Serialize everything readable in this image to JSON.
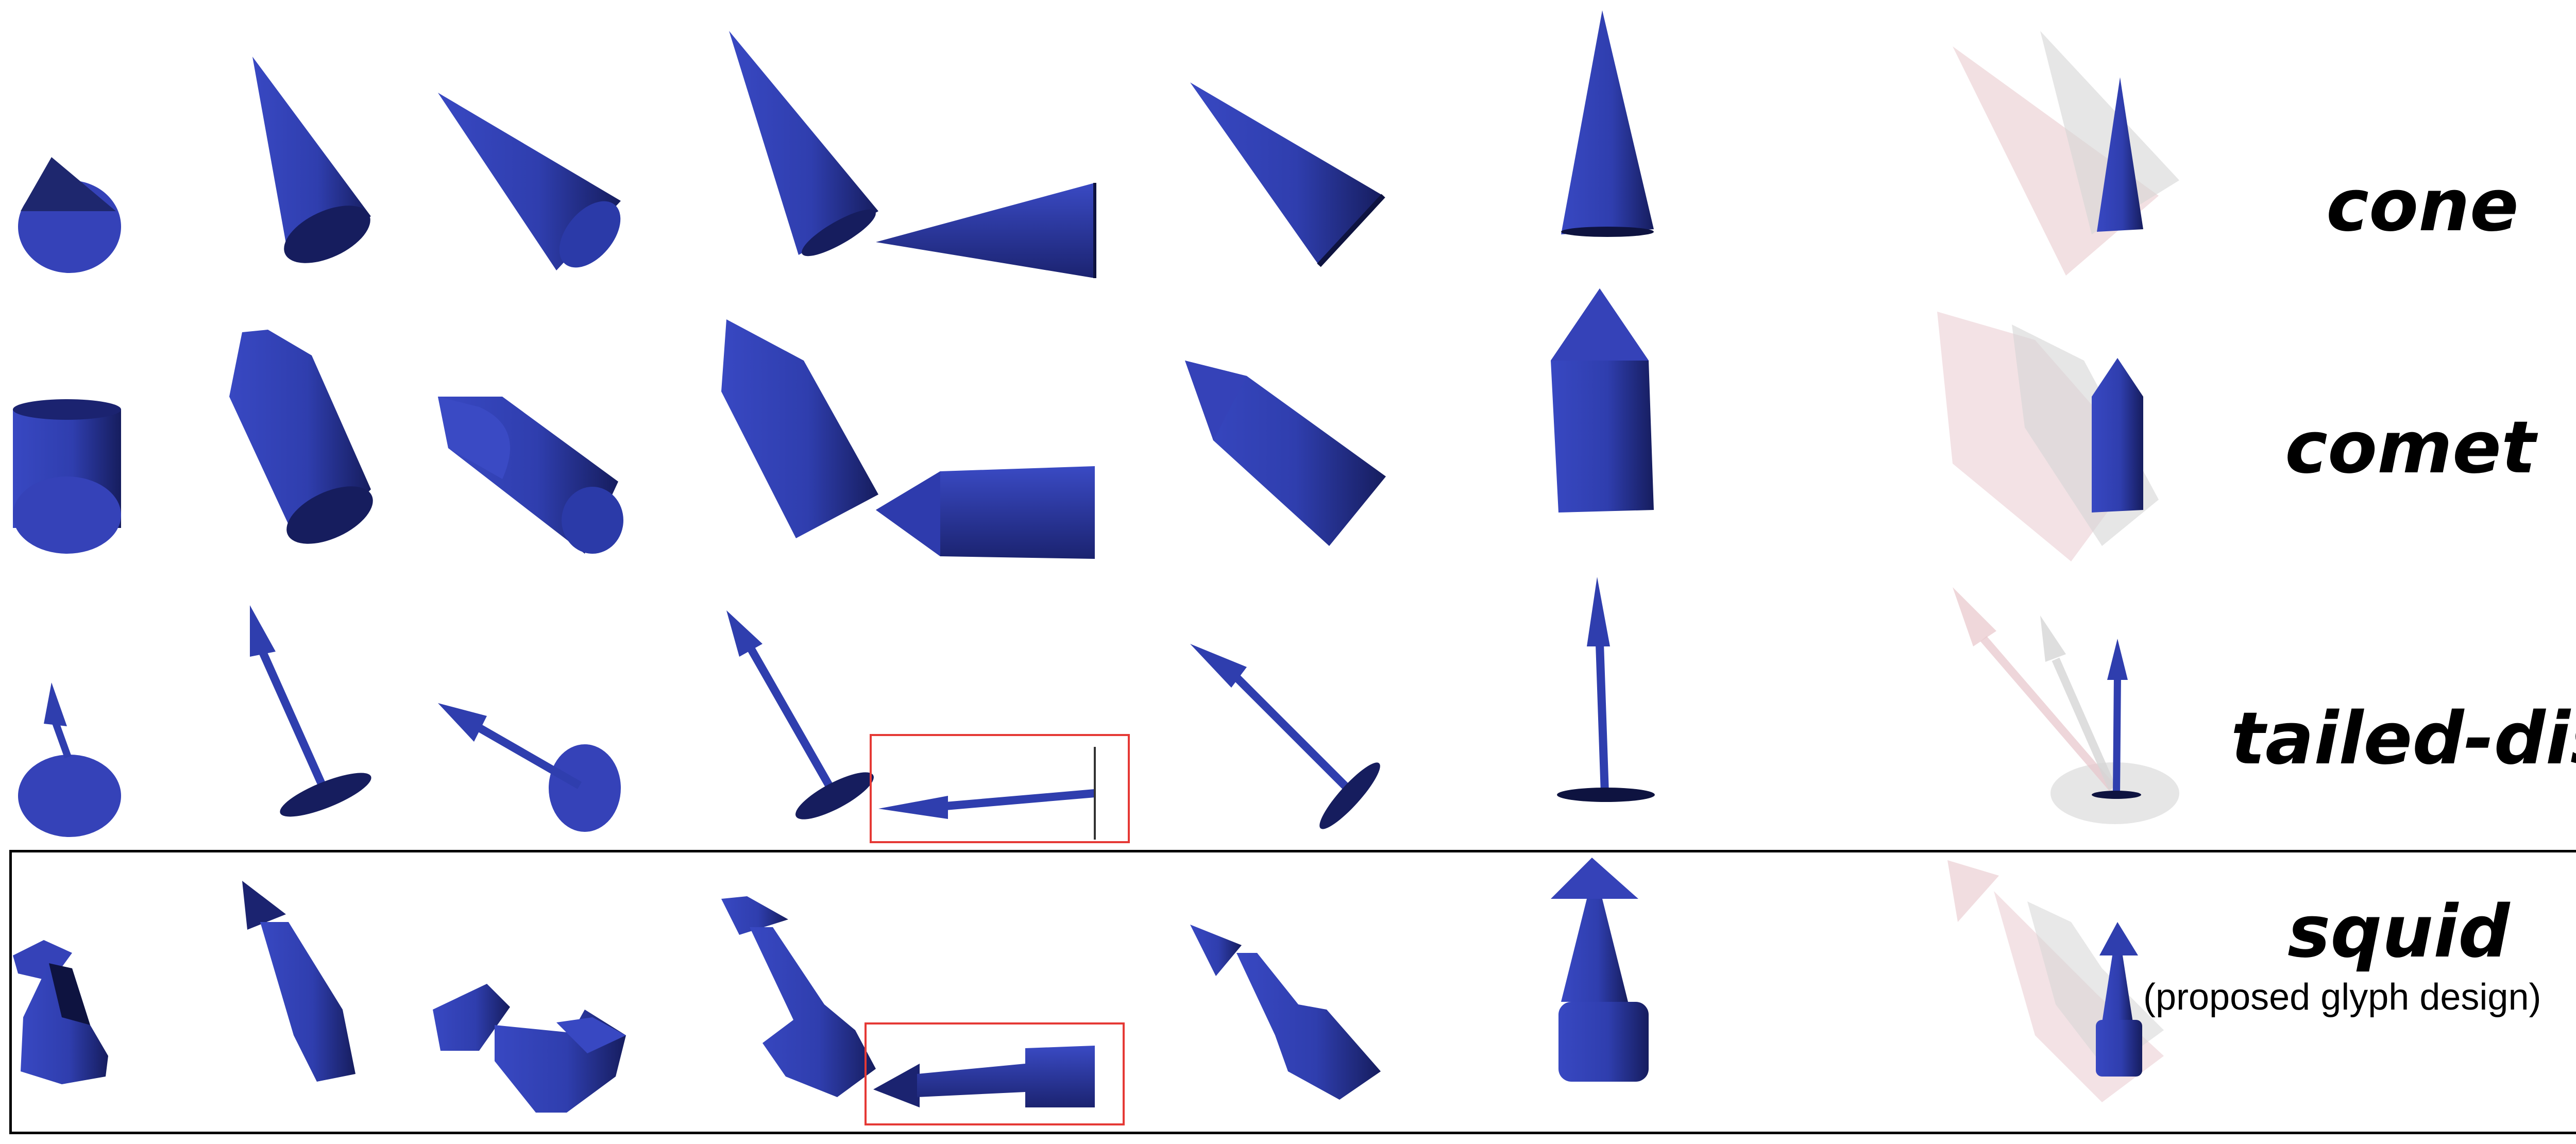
{
  "rows": [
    {
      "id": "cone",
      "label": "cone"
    },
    {
      "id": "comet",
      "label": "comet"
    },
    {
      "id": "tailed-disc",
      "label": "tailed-disc"
    },
    {
      "id": "squid",
      "label": "squid",
      "caption": "(proposed glyph design)"
    }
  ],
  "colors": {
    "glyph": "#2f3eae",
    "glyph_dark": "#141a55",
    "ghost_pink": "#e8c6cb",
    "ghost_gray": "#d6d6d6",
    "highlight": "#e53935",
    "frame": "#000000"
  }
}
